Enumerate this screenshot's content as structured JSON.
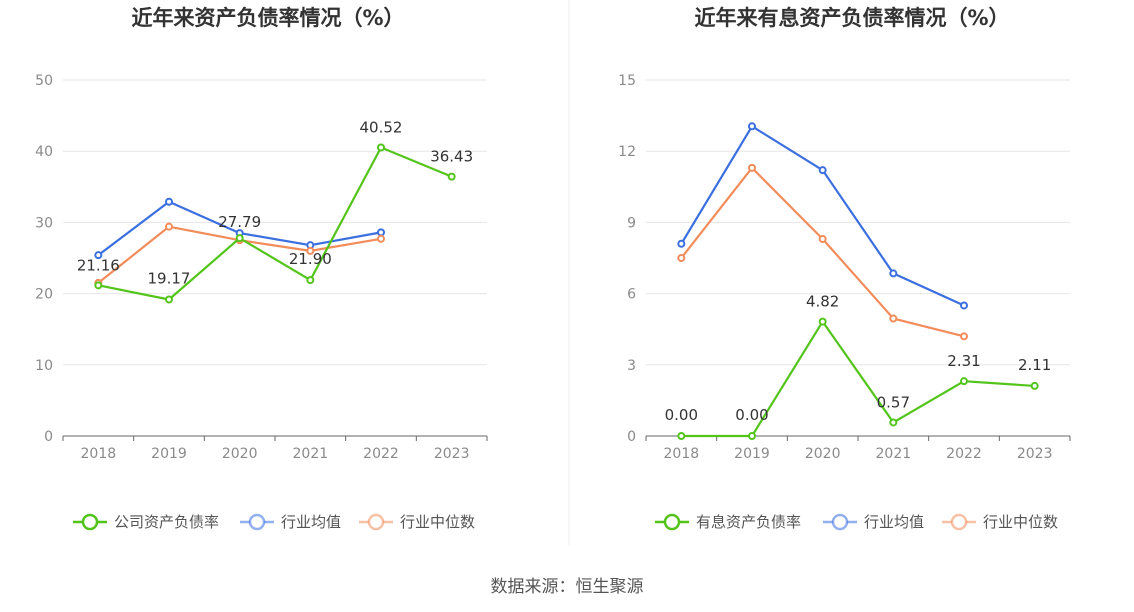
{
  "source_text": "数据来源：恒生聚源",
  "chart_data": [
    {
      "type": "line",
      "title": "近年来资产负债率情况（%）",
      "xlabel": "",
      "ylabel": "",
      "categories": [
        "2018",
        "2019",
        "2020",
        "2021",
        "2022",
        "2023"
      ],
      "ylim": [
        0,
        50
      ],
      "yticks": [
        "0",
        "10",
        "20",
        "30",
        "40",
        "50"
      ],
      "grid": true,
      "legend_position": "bottom",
      "series": [
        {
          "name": "公司资产负债率",
          "color": "#52c41a",
          "values": [
            21.16,
            19.17,
            27.79,
            21.9,
            40.52,
            36.43
          ],
          "labels": [
            "21.16",
            "19.17",
            "27.79",
            "21.90",
            "40.52",
            "36.43"
          ]
        },
        {
          "name": "行业均值",
          "color": "#3b6fe0",
          "values": [
            25.4,
            32.9,
            28.5,
            26.8,
            28.6,
            null
          ]
        },
        {
          "name": "行业中位数",
          "color": "#f28c5a",
          "values": [
            21.5,
            29.4,
            27.5,
            26.0,
            27.7,
            null
          ]
        }
      ]
    },
    {
      "type": "line",
      "title": "近年来有息资产负债率情况（%）",
      "xlabel": "",
      "ylabel": "",
      "categories": [
        "2018",
        "2019",
        "2020",
        "2021",
        "2022",
        "2023"
      ],
      "ylim": [
        0,
        15
      ],
      "yticks": [
        "0",
        "3",
        "6",
        "9",
        "12",
        "15"
      ],
      "grid": true,
      "legend_position": "bottom",
      "series": [
        {
          "name": "有息资产负债率",
          "color": "#52c41a",
          "values": [
            0.0,
            0.0,
            4.82,
            0.57,
            2.31,
            2.11
          ],
          "labels": [
            "0.00",
            "0.00",
            "4.82",
            "0.57",
            "2.31",
            "2.11"
          ]
        },
        {
          "name": "行业均值",
          "color": "#3b6fe0",
          "values": [
            8.1,
            13.05,
            11.2,
            6.85,
            5.5,
            null
          ]
        },
        {
          "name": "行业中位数",
          "color": "#f28c5a",
          "values": [
            7.5,
            11.3,
            8.3,
            4.95,
            4.2,
            null
          ]
        }
      ]
    }
  ]
}
